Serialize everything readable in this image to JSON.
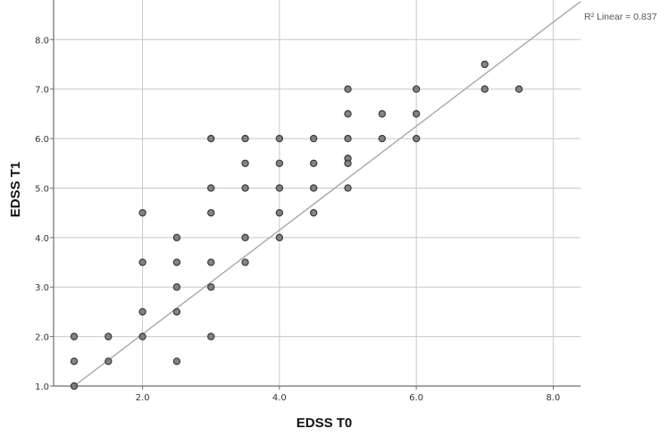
{
  "chart_data": {
    "type": "scatter",
    "title": "",
    "xlabel": "EDSS T0",
    "ylabel": "EDSS T1",
    "xlim": [
      0.7,
      8.4
    ],
    "ylim": [
      1.0,
      8.8
    ],
    "x_ticks": [
      2.0,
      4.0,
      6.0,
      8.0
    ],
    "x_tick_labels": [
      "2.0",
      "4.0",
      "6.0",
      "8.0"
    ],
    "y_ticks": [
      1.0,
      2.0,
      3.0,
      4.0,
      5.0,
      6.0,
      7.0,
      8.0
    ],
    "y_tick_labels": [
      "1.0",
      "2.0",
      "3.0",
      "4.0",
      "5.0",
      "6.0",
      "7.0",
      "8.0"
    ],
    "grid": true,
    "annotation": "R² Linear = 0.837",
    "fit_line": {
      "type": "linear",
      "slope": 1.05,
      "intercept": -0.05
    },
    "colors": {
      "point_fill": "#6e6e6e",
      "point_stroke": "#3a3a3a",
      "line": "#a8a8a8",
      "grid": "#c8c8c8",
      "axis": "#6f6f6f"
    },
    "points": [
      {
        "x": 1.0,
        "y": 2.0
      },
      {
        "x": 1.0,
        "y": 1.5
      },
      {
        "x": 1.0,
        "y": 1.0
      },
      {
        "x": 1.5,
        "y": 2.0
      },
      {
        "x": 1.5,
        "y": 1.5
      },
      {
        "x": 2.0,
        "y": 4.5
      },
      {
        "x": 2.0,
        "y": 3.5
      },
      {
        "x": 2.0,
        "y": 2.5
      },
      {
        "x": 2.0,
        "y": 2.0
      },
      {
        "x": 2.5,
        "y": 4.0
      },
      {
        "x": 2.5,
        "y": 3.5
      },
      {
        "x": 2.5,
        "y": 3.0
      },
      {
        "x": 2.5,
        "y": 2.5
      },
      {
        "x": 2.5,
        "y": 1.5
      },
      {
        "x": 3.0,
        "y": 6.0
      },
      {
        "x": 3.0,
        "y": 5.0
      },
      {
        "x": 3.0,
        "y": 4.5
      },
      {
        "x": 3.0,
        "y": 3.5
      },
      {
        "x": 3.0,
        "y": 3.0
      },
      {
        "x": 3.0,
        "y": 2.0
      },
      {
        "x": 3.5,
        "y": 6.0
      },
      {
        "x": 3.5,
        "y": 5.5
      },
      {
        "x": 3.5,
        "y": 5.0
      },
      {
        "x": 3.5,
        "y": 4.0
      },
      {
        "x": 3.5,
        "y": 3.5
      },
      {
        "x": 4.0,
        "y": 6.0
      },
      {
        "x": 4.0,
        "y": 5.5
      },
      {
        "x": 4.0,
        "y": 5.0
      },
      {
        "x": 4.0,
        "y": 4.5
      },
      {
        "x": 4.0,
        "y": 4.0
      },
      {
        "x": 4.5,
        "y": 6.0
      },
      {
        "x": 4.5,
        "y": 5.5
      },
      {
        "x": 4.5,
        "y": 5.0
      },
      {
        "x": 4.5,
        "y": 4.5
      },
      {
        "x": 5.0,
        "y": 7.0
      },
      {
        "x": 5.0,
        "y": 6.5
      },
      {
        "x": 5.0,
        "y": 6.0
      },
      {
        "x": 5.0,
        "y": 5.6
      },
      {
        "x": 5.0,
        "y": 5.5
      },
      {
        "x": 5.0,
        "y": 5.0
      },
      {
        "x": 5.5,
        "y": 6.5
      },
      {
        "x": 5.5,
        "y": 6.0
      },
      {
        "x": 6.0,
        "y": 7.0
      },
      {
        "x": 6.0,
        "y": 6.5
      },
      {
        "x": 6.0,
        "y": 6.0
      },
      {
        "x": 7.0,
        "y": 7.5
      },
      {
        "x": 7.0,
        "y": 7.0
      },
      {
        "x": 7.5,
        "y": 7.0
      }
    ]
  }
}
